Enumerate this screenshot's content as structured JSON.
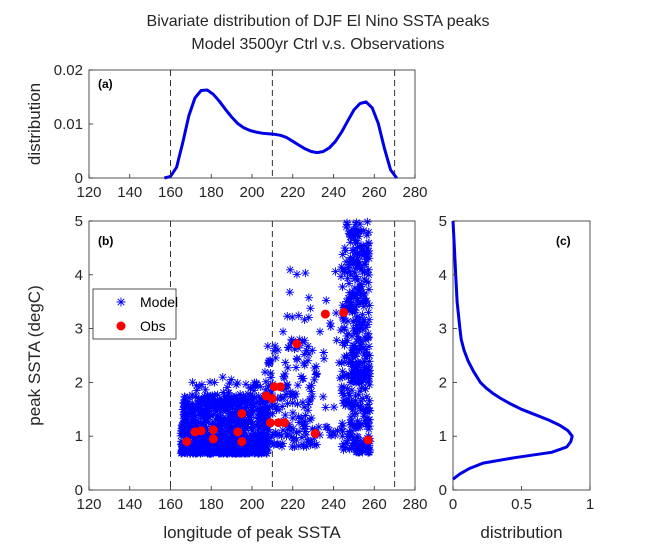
{
  "title": {
    "line1": "Bivariate distribution of DJF El Nino SSTA peaks",
    "line2": "Model 3500yr Ctrl v.s. Observations"
  },
  "colors": {
    "model": "#0000ff",
    "obs": "#ff0000",
    "curve": "#0000e6",
    "axis": "#262626"
  },
  "chart_data": [
    {
      "panel": "a",
      "type": "line",
      "label": "(a)",
      "ylabel": "distribution",
      "xlim": [
        120,
        280
      ],
      "ylim": [
        0,
        0.02
      ],
      "xticks": [
        "120",
        "140",
        "160",
        "180",
        "200",
        "220",
        "240",
        "260",
        "280"
      ],
      "yticks": [
        "0",
        "0.01",
        "0.02"
      ],
      "vlines": [
        160,
        210,
        270
      ],
      "x": [
        157,
        160,
        163,
        166,
        169,
        172,
        175,
        178,
        181,
        184,
        187,
        190,
        193,
        196,
        199,
        202,
        205,
        208,
        211,
        214,
        217,
        220,
        223,
        226,
        229,
        232,
        235,
        238,
        241,
        244,
        247,
        250,
        253,
        256,
        259,
        262,
        265,
        268,
        271
      ],
      "y": [
        0,
        0.0003,
        0.002,
        0.0065,
        0.0115,
        0.0148,
        0.0162,
        0.0163,
        0.0155,
        0.0142,
        0.0127,
        0.0113,
        0.0101,
        0.0093,
        0.0088,
        0.0085,
        0.0083,
        0.0082,
        0.0081,
        0.0079,
        0.0075,
        0.0068,
        0.0061,
        0.0054,
        0.0049,
        0.0047,
        0.0049,
        0.0056,
        0.0068,
        0.0085,
        0.0106,
        0.0126,
        0.0138,
        0.0141,
        0.013,
        0.0101,
        0.0055,
        0.0015,
        0
      ]
    },
    {
      "panel": "b",
      "type": "scatter",
      "label": "(b)",
      "xlabel": "longitude of peak SSTA",
      "ylabel": "peak SSTA (degC)",
      "xlim": [
        120,
        280
      ],
      "ylim": [
        0,
        5
      ],
      "xticks": [
        "120",
        "140",
        "160",
        "180",
        "200",
        "220",
        "240",
        "260",
        "280"
      ],
      "yticks": [
        "0",
        "1",
        "2",
        "3",
        "4",
        "5"
      ],
      "vlines": [
        160,
        210,
        270
      ],
      "legend": {
        "position": "left",
        "entries": [
          "Model",
          "Obs"
        ]
      },
      "series": [
        {
          "name": "Model",
          "marker": "asterisk",
          "clusters": [
            {
              "x": [
                165,
                208
              ],
              "y": [
                0.68,
                1.75
              ],
              "count": 900
            },
            {
              "x": [
                170,
                205
              ],
              "y": [
                1.6,
                2.1
              ],
              "count": 60
            },
            {
              "x": [
                206,
                232
              ],
              "y": [
                0.8,
                2.8
              ],
              "count": 160
            },
            {
              "x": [
                215,
                245
              ],
              "y": [
                1.0,
                4.2
              ],
              "count": 60
            },
            {
              "x": [
                244,
                258
              ],
              "y": [
                0.7,
                5.0
              ],
              "count": 320
            },
            {
              "x": [
                248,
                258
              ],
              "y": [
                2.0,
                5.0
              ],
              "count": 120
            }
          ]
        },
        {
          "name": "Obs",
          "marker": "dot",
          "points": [
            {
              "x": 168,
              "y": 0.9
            },
            {
              "x": 172,
              "y": 1.08
            },
            {
              "x": 175,
              "y": 1.1
            },
            {
              "x": 181,
              "y": 0.95
            },
            {
              "x": 181,
              "y": 1.12
            },
            {
              "x": 193,
              "y": 1.08
            },
            {
              "x": 195,
              "y": 0.9
            },
            {
              "x": 195,
              "y": 1.42
            },
            {
              "x": 207,
              "y": 1.75
            },
            {
              "x": 209,
              "y": 1.25
            },
            {
              "x": 210,
              "y": 1.7
            },
            {
              "x": 211,
              "y": 1.92
            },
            {
              "x": 213,
              "y": 1.25
            },
            {
              "x": 214,
              "y": 1.92
            },
            {
              "x": 216,
              "y": 1.25
            },
            {
              "x": 222,
              "y": 2.72
            },
            {
              "x": 231,
              "y": 1.05
            },
            {
              "x": 236,
              "y": 3.27
            },
            {
              "x": 245,
              "y": 3.3
            },
            {
              "x": 257,
              "y": 0.93
            }
          ]
        }
      ]
    },
    {
      "panel": "c",
      "type": "line",
      "label": "(c)",
      "xlabel": "distribution",
      "xlim": [
        0,
        1
      ],
      "ylim": [
        0,
        5
      ],
      "xticks": [
        "0",
        "0.5",
        "1"
      ],
      "yticks": [
        "0",
        "1",
        "2",
        "3",
        "4",
        "5"
      ],
      "y": [
        0.2,
        0.3,
        0.4,
        0.5,
        0.6,
        0.7,
        0.8,
        0.9,
        1.0,
        1.1,
        1.2,
        1.3,
        1.4,
        1.5,
        1.6,
        1.7,
        1.8,
        1.9,
        2.0,
        2.2,
        2.4,
        2.6,
        2.8,
        3.0,
        3.5,
        4.0,
        4.5,
        5.0
      ],
      "x": [
        0.0,
        0.05,
        0.12,
        0.22,
        0.45,
        0.72,
        0.83,
        0.86,
        0.87,
        0.84,
        0.78,
        0.7,
        0.6,
        0.5,
        0.42,
        0.35,
        0.29,
        0.24,
        0.2,
        0.15,
        0.11,
        0.08,
        0.06,
        0.05,
        0.03,
        0.02,
        0.01,
        0.0
      ]
    }
  ]
}
